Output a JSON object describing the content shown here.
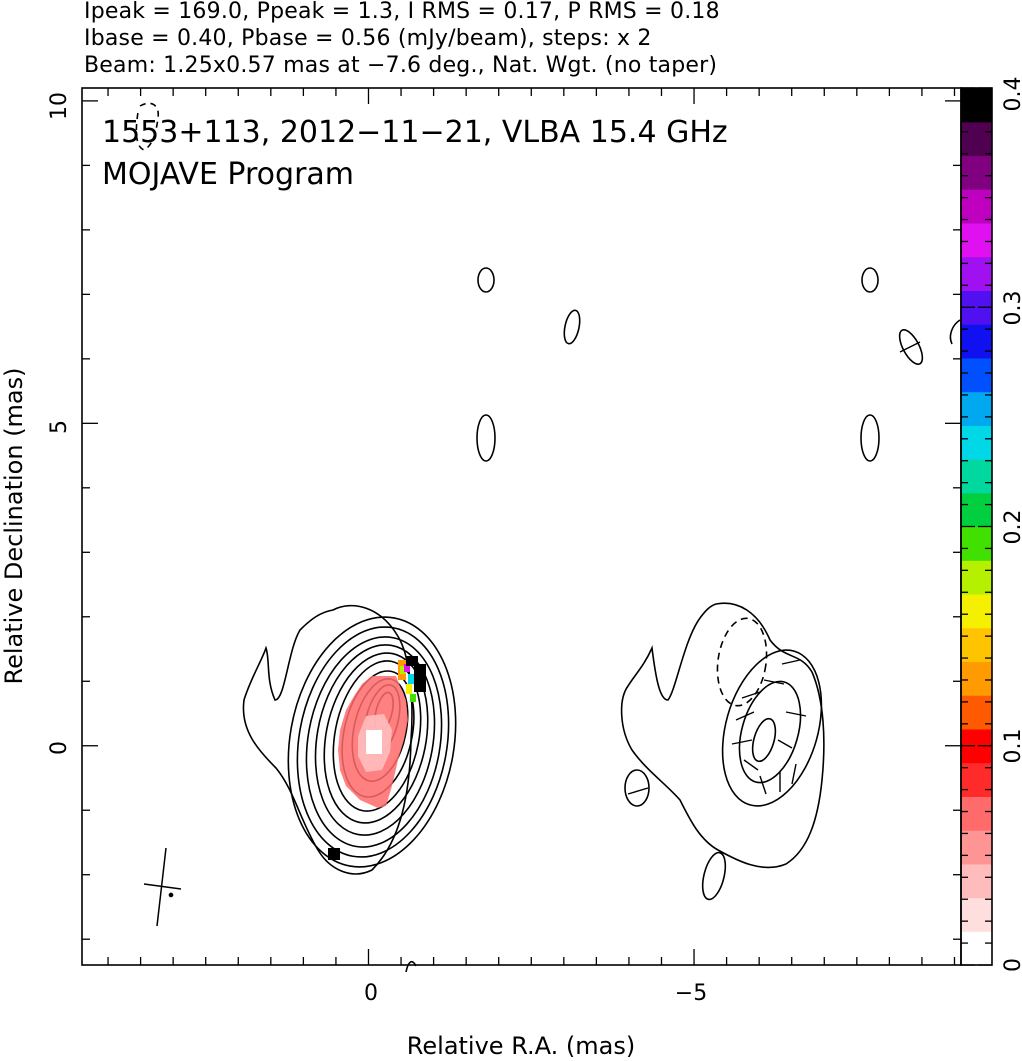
{
  "header": {
    "line1": "Ipeak = 169.0, Ppeak = 1.3, I RMS = 0.17, P RMS = 0.18",
    "line2": "Ibase = 0.40, Pbase = 0.56 (mJy/beam), steps: x 2",
    "line3": "Beam: 1.25x0.57 mas at −7.6 deg., Nat. Wgt. (no taper)"
  },
  "chart_data": [
    {
      "type": "contour",
      "annotations": [
        "1553+113, 2012−11−21, VLBA 15.4 GHz",
        "MOJAVE Program"
      ],
      "xlabel": "Relative R.A. (mas)",
      "ylabel": "Relative Declination (mas)",
      "xlim": [
        4.4,
        -9.1
      ],
      "ylim": [
        -3.4,
        10.2
      ],
      "x_ticks": [
        {
          "value": 0,
          "label": "0"
        },
        {
          "value": -5,
          "label": "−5"
        }
      ],
      "y_ticks": [
        {
          "value": 0,
          "label": "0"
        },
        {
          "value": 5,
          "label": "5"
        },
        {
          "value": 10,
          "label": "10"
        }
      ],
      "x_minor_step": 0.5,
      "y_minor_step": 1,
      "contour_base_mJy_per_beam": 0.4,
      "contour_step": "x 2",
      "beam": {
        "major_mas": 1.25,
        "minor_mas": 0.57,
        "pa_deg": -7.6
      },
      "color_wedge": {
        "min": 0,
        "max": 0.4,
        "ticks": [
          {
            "value": 0,
            "label": "0"
          },
          {
            "value": 0.1,
            "label": "0.1"
          },
          {
            "value": 0.2,
            "label": "0.2"
          },
          {
            "value": 0.3,
            "label": "0.3"
          },
          {
            "value": 0.4,
            "label": "0.4"
          }
        ],
        "colors": [
          "#ffffff",
          "#ffdede",
          "#ffbcbc",
          "#ff9494",
          "#ff6a6a",
          "#ff2a2a",
          "#ff0000",
          "#ff5a00",
          "#ff9a00",
          "#ffc400",
          "#f4f000",
          "#b4f000",
          "#40e000",
          "#00d040",
          "#00d8a0",
          "#00d8e8",
          "#00a8f0",
          "#0050ff",
          "#1010f0",
          "#5010f0",
          "#a010f0",
          "#e010f0",
          "#c000c0",
          "#800080",
          "#500050",
          "#000000"
        ]
      }
    }
  ]
}
